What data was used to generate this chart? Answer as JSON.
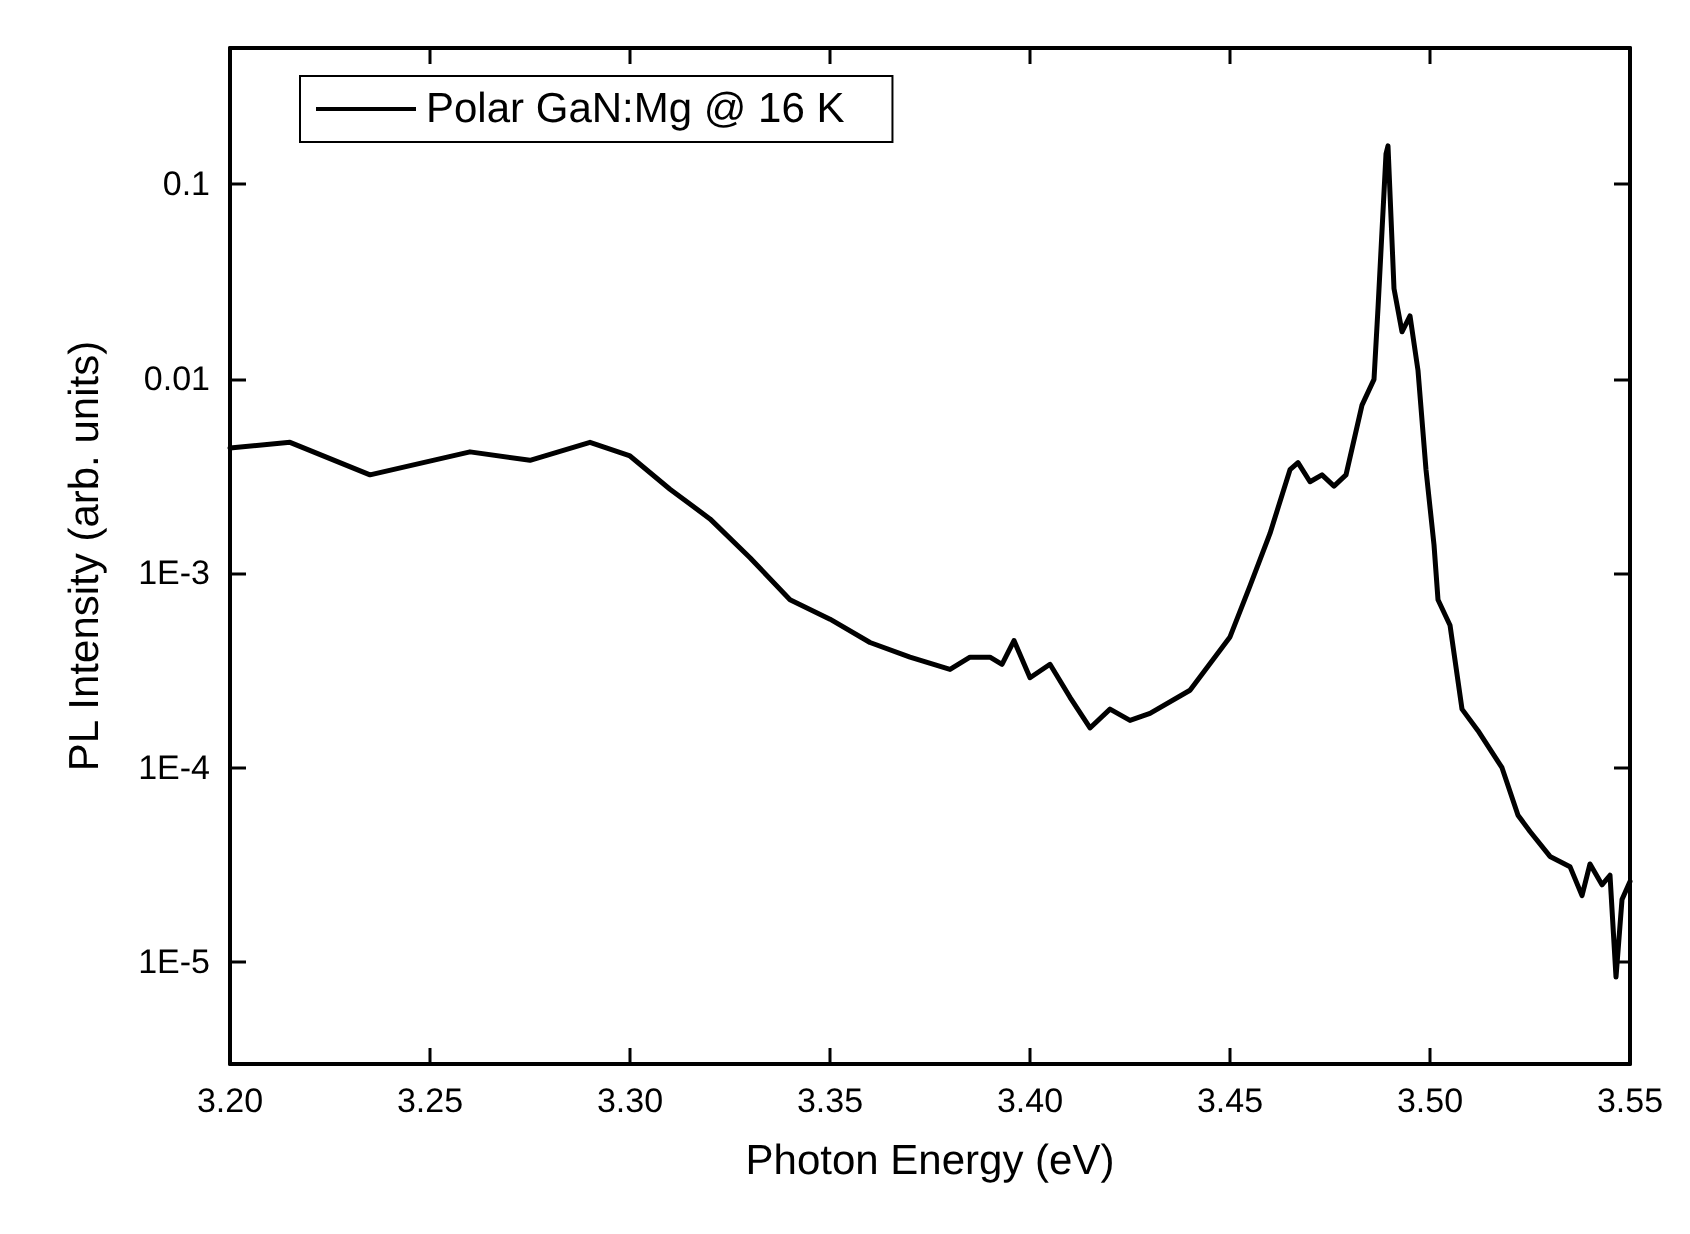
{
  "chart_data": {
    "type": "line",
    "xlabel": "Photon Energy (eV)",
    "ylabel": "PL Intensity (arb. units)",
    "log": "y",
    "grid": false,
    "legend": "top left",
    "marker": "none",
    "line_style": "solid",
    "xlim": [
      3.2,
      3.55
    ],
    "xticks": [
      {
        "value": 3.2,
        "label": "3.20"
      },
      3.25,
      {
        "value": 3.3,
        "label": "3.30"
      },
      3.35,
      {
        "value": 3.4,
        "label": "3.40"
      },
      3.45,
      {
        "value": 3.5,
        "label": "3.50"
      },
      3.55
    ],
    "ylim": [
      3e-06,
      0.5
    ],
    "yticks": [
      {
        "value": 1e-05,
        "label": "1E-5"
      },
      {
        "value": 0.0001,
        "label": "1E-4"
      },
      {
        "value": 0.001,
        "label": "1E-3"
      },
      0.01,
      0.1
    ],
    "series": [
      {
        "name": "Polar GaN:Mg @ 16 K",
        "color": "#000000",
        "x": [
          3.2,
          3.215,
          3.235,
          3.26,
          3.275,
          3.29,
          3.3,
          3.31,
          3.32,
          3.33,
          3.34,
          3.35,
          3.36,
          3.37,
          3.38,
          3.385,
          3.39,
          3.393,
          3.396,
          3.4,
          3.405,
          3.41,
          3.415,
          3.42,
          3.425,
          3.43,
          3.44,
          3.45,
          3.455,
          3.46,
          3.465,
          3.467,
          3.47,
          3.473,
          3.476,
          3.479,
          3.483,
          3.486,
          3.487,
          3.489,
          3.4895,
          3.491,
          3.493,
          3.495,
          3.497,
          3.499,
          3.501,
          3.502,
          3.505,
          3.508,
          3.512,
          3.518,
          3.522,
          3.525,
          3.53,
          3.535,
          3.538,
          3.54,
          3.543,
          3.545,
          3.5465,
          3.548,
          3.55
        ],
        "values": [
          0.0044,
          0.0047,
          0.0032,
          0.0042,
          0.0038,
          0.0047,
          0.004,
          0.0027,
          0.0019,
          0.0012,
          0.00073,
          0.00058,
          0.00044,
          0.00037,
          0.00032,
          0.00037,
          0.00037,
          0.00034,
          0.00045,
          0.00029,
          0.00034,
          0.00023,
          0.00016,
          0.0002,
          0.000175,
          0.00019,
          0.00025,
          0.00047,
          0.00086,
          0.0016,
          0.0034,
          0.0037,
          0.00295,
          0.0032,
          0.0028,
          0.0032,
          0.0073,
          0.0099,
          0.023,
          0.143,
          0.157,
          0.029,
          0.0174,
          0.021,
          0.011,
          0.0034,
          0.0014,
          0.00073,
          0.00054,
          0.0002,
          0.000155,
          0.0001,
          5.7e-05,
          4.7e-05,
          3.5e-05,
          3.1e-05,
          2.2e-05,
          3.2e-05,
          2.5e-05,
          2.8e-05,
          8.4e-06,
          2.1e-05,
          2.6e-05
        ]
      }
    ]
  }
}
